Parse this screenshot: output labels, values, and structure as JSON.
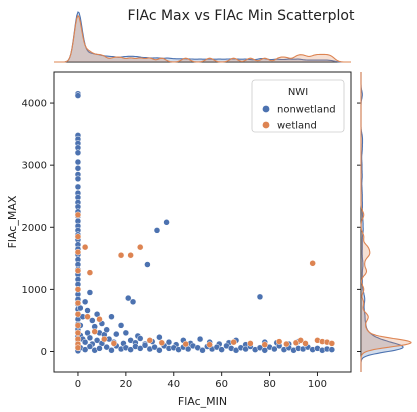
{
  "chart_data": {
    "type": "scatter",
    "title": "FlAc Max vs FlAc Min Scatterplot",
    "xlabel": "FlAc_MIN",
    "ylabel": "FlAc_MAX",
    "xlim": [
      -10,
      114
    ],
    "ylim": [
      -330,
      4500
    ],
    "xticks": [
      0,
      20,
      40,
      60,
      80,
      100
    ],
    "yticks": [
      0,
      1000,
      2000,
      3000,
      4000
    ],
    "grid": false,
    "legend": {
      "title": "NWI",
      "placement": "top-right"
    },
    "marginals": {
      "top": "kde-density-of-x",
      "right": "kde-density-of-y"
    },
    "series": [
      {
        "name": "nonwetland",
        "color": "#4c72b0",
        "points": [
          [
            0,
            4150
          ],
          [
            0,
            4120
          ],
          [
            0,
            3480
          ],
          [
            0,
            3420
          ],
          [
            0,
            3350
          ],
          [
            0,
            3280
          ],
          [
            0,
            3200
          ],
          [
            0,
            3050
          ],
          [
            0,
            2950
          ],
          [
            0,
            2850
          ],
          [
            0,
            2780
          ],
          [
            0,
            2650
          ],
          [
            0,
            2550
          ],
          [
            0,
            2480
          ],
          [
            0,
            2400
          ],
          [
            0,
            2330
          ],
          [
            0,
            2250
          ],
          [
            0,
            2180
          ],
          [
            0,
            2100
          ],
          [
            0,
            2020
          ],
          [
            0,
            1950
          ],
          [
            0,
            1880
          ],
          [
            0,
            1800
          ],
          [
            0,
            1720
          ],
          [
            0,
            1650
          ],
          [
            0,
            1560
          ],
          [
            0,
            1480
          ],
          [
            0,
            1400
          ],
          [
            0,
            1320
          ],
          [
            0,
            1240
          ],
          [
            0,
            1160
          ],
          [
            0,
            1080
          ],
          [
            0,
            1000
          ],
          [
            0,
            920
          ],
          [
            0,
            840
          ],
          [
            0,
            760
          ],
          [
            0,
            680
          ],
          [
            0,
            600
          ],
          [
            0,
            520
          ],
          [
            0,
            440
          ],
          [
            0,
            360
          ],
          [
            0,
            300
          ],
          [
            0,
            240
          ],
          [
            0,
            180
          ],
          [
            0,
            130
          ],
          [
            0,
            80
          ],
          [
            0,
            40
          ],
          [
            0,
            10
          ],
          [
            1,
            700
          ],
          [
            1,
            420
          ],
          [
            1,
            260
          ],
          [
            2,
            560
          ],
          [
            2,
            200
          ],
          [
            3,
            800
          ],
          [
            3,
            150
          ],
          [
            4,
            660
          ],
          [
            4,
            300
          ],
          [
            5,
            950
          ],
          [
            5,
            220
          ],
          [
            6,
            500
          ],
          [
            6,
            120
          ],
          [
            7,
            400
          ],
          [
            8,
            600
          ],
          [
            8,
            180
          ],
          [
            9,
            300
          ],
          [
            10,
            450
          ],
          [
            10,
            130
          ],
          [
            11,
            270
          ],
          [
            12,
            350
          ],
          [
            13,
            200
          ],
          [
            14,
            560
          ],
          [
            15,
            150
          ],
          [
            16,
            280
          ],
          [
            18,
            420
          ],
          [
            19,
            130
          ],
          [
            20,
            300
          ],
          [
            21,
            860
          ],
          [
            22,
            180
          ],
          [
            23,
            800
          ],
          [
            24,
            140
          ],
          [
            25,
            250
          ],
          [
            26,
            210
          ],
          [
            28,
            120
          ],
          [
            29,
            1400
          ],
          [
            31,
            160
          ],
          [
            33,
            1950
          ],
          [
            34,
            230
          ],
          [
            37,
            2080
          ],
          [
            38,
            150
          ],
          [
            41,
            110
          ],
          [
            44,
            180
          ],
          [
            47,
            130
          ],
          [
            51,
            200
          ],
          [
            55,
            150
          ],
          [
            59,
            120
          ],
          [
            63,
            140
          ],
          [
            66,
            180
          ],
          [
            70,
            110
          ],
          [
            76,
            880
          ],
          [
            78,
            150
          ],
          [
            83,
            140
          ],
          [
            88,
            120
          ],
          [
            92,
            160
          ],
          [
            1,
            60
          ],
          [
            3,
            30
          ],
          [
            5,
            80
          ],
          [
            7,
            20
          ],
          [
            9,
            50
          ],
          [
            12,
            70
          ],
          [
            14,
            20
          ],
          [
            16,
            90
          ],
          [
            18,
            40
          ],
          [
            20,
            60
          ],
          [
            22,
            30
          ],
          [
            24,
            80
          ],
          [
            26,
            50
          ],
          [
            28,
            100
          ],
          [
            30,
            40
          ],
          [
            32,
            70
          ],
          [
            34,
            20
          ],
          [
            36,
            90
          ],
          [
            38,
            50
          ],
          [
            40,
            60
          ],
          [
            42,
            30
          ],
          [
            44,
            70
          ],
          [
            46,
            40
          ],
          [
            48,
            90
          ],
          [
            50,
            60
          ],
          [
            52,
            20
          ],
          [
            54,
            80
          ],
          [
            56,
            40
          ],
          [
            58,
            70
          ],
          [
            60,
            30
          ],
          [
            62,
            90
          ],
          [
            64,
            50
          ],
          [
            66,
            20
          ],
          [
            68,
            60
          ],
          [
            70,
            40
          ],
          [
            72,
            80
          ],
          [
            74,
            30
          ],
          [
            76,
            60
          ],
          [
            78,
            20
          ],
          [
            80,
            70
          ],
          [
            82,
            40
          ],
          [
            84,
            90
          ],
          [
            86,
            30
          ],
          [
            88,
            60
          ],
          [
            90,
            20
          ],
          [
            92,
            50
          ],
          [
            94,
            40
          ],
          [
            96,
            70
          ],
          [
            98,
            30
          ],
          [
            100,
            50
          ],
          [
            102,
            20
          ],
          [
            104,
            40
          ],
          [
            106,
            30
          ]
        ]
      },
      {
        "name": "wetland",
        "color": "#dd8452",
        "points": [
          [
            0,
            2200
          ],
          [
            0,
            1850
          ],
          [
            0,
            1600
          ],
          [
            0,
            1300
          ],
          [
            0,
            1000
          ],
          [
            0,
            780
          ],
          [
            0,
            600
          ],
          [
            0,
            420
          ],
          [
            0,
            300
          ],
          [
            0,
            200
          ],
          [
            0,
            120
          ],
          [
            0,
            60
          ],
          [
            3,
            1680
          ],
          [
            4,
            560
          ],
          [
            5,
            1270
          ],
          [
            7,
            320
          ],
          [
            9,
            520
          ],
          [
            11,
            200
          ],
          [
            15,
            130
          ],
          [
            18,
            1550
          ],
          [
            22,
            1550
          ],
          [
            26,
            1680
          ],
          [
            30,
            180
          ],
          [
            35,
            140
          ],
          [
            45,
            120
          ],
          [
            55,
            110
          ],
          [
            65,
            150
          ],
          [
            72,
            130
          ],
          [
            78,
            110
          ],
          [
            84,
            160
          ],
          [
            87,
            120
          ],
          [
            91,
            140
          ],
          [
            93,
            180
          ],
          [
            95,
            130
          ],
          [
            98,
            1420
          ],
          [
            100,
            180
          ],
          [
            102,
            160
          ],
          [
            104,
            150
          ],
          [
            106,
            130
          ]
        ]
      }
    ]
  }
}
